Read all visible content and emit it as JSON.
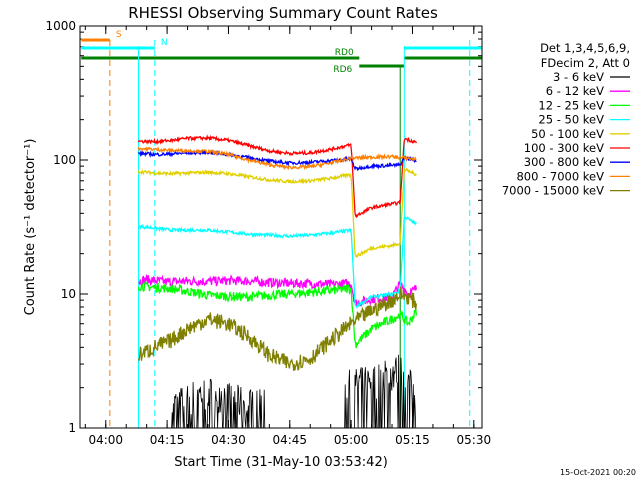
{
  "chart_data": {
    "type": "line",
    "title": "RHESSI Observing Summary Count Rates",
    "xlabel": "Start Time (31-May-10 03:53:42)",
    "ylabel": "Count Rate (s⁻¹ detector⁻¹)",
    "ylog": true,
    "ylim": [
      1,
      1000
    ],
    "xlim": [
      "03:53:42",
      "05:32:00"
    ],
    "x_ticks": [
      "04:00",
      "04:15",
      "04:30",
      "04:45",
      "05:00",
      "05:15",
      "05:30"
    ],
    "y_ticks": [
      "1",
      "10",
      "100",
      "1000"
    ],
    "legend_header": [
      "Det 1,3,4,5,6,9,",
      "FDecim 2, Att 0"
    ],
    "legend_position": "right",
    "footer_date": "15-Oct-2021 00:20",
    "time_markers": [
      {
        "time": "04:01",
        "color": "#ff8000",
        "style": "dashed",
        "label": "S"
      },
      {
        "time": "04:12",
        "color": "#00ffff",
        "style": "dashed",
        "label": "N"
      },
      {
        "time": "05:29",
        "color": "#00ffff",
        "style": "dashed",
        "label": ""
      }
    ],
    "state_bars": [
      {
        "label": "S",
        "color": "#ff8000",
        "from": "03:54",
        "to": "04:01",
        "level": "top"
      },
      {
        "label": "N",
        "color": "#00ffff",
        "from": "03:54",
        "to": "04:12",
        "level": "upper"
      },
      {
        "label": "",
        "color": "#00ffff",
        "from": "05:13",
        "to": "05:32",
        "level": "upper"
      },
      {
        "label": "RD0",
        "color": "#008000",
        "from": "03:54",
        "to": "05:02",
        "level": "middle"
      },
      {
        "label": "RD6",
        "color": "#008000",
        "from": "05:02",
        "to": "05:13",
        "level": "lower"
      },
      {
        "label": "",
        "color": "#008000",
        "from": "05:13",
        "to": "05:32",
        "level": "middle"
      }
    ],
    "series": [
      {
        "name": "3 - 6 keV",
        "color": "#000000",
        "points": [
          [
            "04:08",
            0
          ],
          [
            "04:09",
            0
          ],
          [
            "04:10",
            0
          ],
          [
            "04:11",
            0
          ],
          [
            "04:12",
            0
          ],
          [
            "04:15",
            0
          ],
          [
            "04:17",
            1.5
          ],
          [
            "04:22",
            1.8
          ],
          [
            "04:27",
            1.9
          ],
          [
            "04:30",
            1.7
          ],
          [
            "04:36",
            1.5
          ],
          [
            "04:42",
            0
          ],
          [
            "04:47",
            0
          ],
          [
            "04:52",
            0
          ],
          [
            "04:57",
            0
          ],
          [
            "05:00",
            2.1
          ],
          [
            "05:05",
            2.3
          ],
          [
            "05:10",
            2.6
          ],
          [
            "05:12",
            2.8
          ],
          [
            "05:14",
            2.2
          ],
          [
            "05:16",
            1.8
          ]
        ]
      },
      {
        "name": "6 - 12 keV",
        "color": "#ff00ff",
        "points": [
          [
            "04:08",
            12.5
          ],
          [
            "04:10",
            12.8
          ],
          [
            "04:15",
            12.3
          ],
          [
            "04:20",
            12.5
          ],
          [
            "04:25",
            12.4
          ],
          [
            "04:30",
            12.6
          ],
          [
            "04:35",
            12.5
          ],
          [
            "04:40",
            12.2
          ],
          [
            "04:45",
            12.0
          ],
          [
            "04:50",
            12.0
          ],
          [
            "04:55",
            11.8
          ],
          [
            "05:00",
            12.0
          ],
          [
            "05:01",
            8.5
          ],
          [
            "05:05",
            9.2
          ],
          [
            "05:10",
            9.5
          ],
          [
            "05:12",
            12.0
          ],
          [
            "05:14",
            10.0
          ],
          [
            "05:16",
            11.0
          ]
        ]
      },
      {
        "name": "12 - 25 keV",
        "color": "#00ff00",
        "points": [
          [
            "04:08",
            11.5
          ],
          [
            "04:12",
            11.2
          ],
          [
            "04:16",
            11.0
          ],
          [
            "04:20",
            10.5
          ],
          [
            "04:25",
            9.8
          ],
          [
            "04:30",
            9.6
          ],
          [
            "04:35",
            9.5
          ],
          [
            "04:40",
            9.8
          ],
          [
            "04:45",
            10.0
          ],
          [
            "04:50",
            10.3
          ],
          [
            "04:55",
            10.6
          ],
          [
            "05:00",
            11.0
          ],
          [
            "05:01",
            4.2
          ],
          [
            "05:05",
            5.5
          ],
          [
            "05:10",
            6.5
          ],
          [
            "05:12",
            7.0
          ],
          [
            "05:14",
            6.0
          ],
          [
            "05:16",
            7.5
          ]
        ]
      },
      {
        "name": "25 - 50 keV",
        "color": "#00ffff",
        "points": [
          [
            "04:08",
            32
          ],
          [
            "04:12",
            31
          ],
          [
            "04:16",
            30
          ],
          [
            "04:20",
            30
          ],
          [
            "04:25",
            30
          ],
          [
            "04:30",
            29
          ],
          [
            "04:35",
            28
          ],
          [
            "04:40",
            27.5
          ],
          [
            "04:45",
            27
          ],
          [
            "04:50",
            27.5
          ],
          [
            "04:55",
            28.5
          ],
          [
            "05:00",
            30
          ],
          [
            "05:01",
            8.0
          ],
          [
            "05:05",
            9.5
          ],
          [
            "05:10",
            10.0
          ],
          [
            "05:12",
            10.5
          ],
          [
            "05:13",
            38
          ],
          [
            "05:16",
            33
          ]
        ]
      },
      {
        "name": "50 - 100 keV",
        "color": "#e0d000",
        "points": [
          [
            "04:08",
            82
          ],
          [
            "04:12",
            80
          ],
          [
            "04:16",
            79
          ],
          [
            "04:20",
            80
          ],
          [
            "04:25",
            81
          ],
          [
            "04:30",
            79
          ],
          [
            "04:35",
            75
          ],
          [
            "04:40",
            71
          ],
          [
            "04:45",
            69
          ],
          [
            "04:50",
            70
          ],
          [
            "04:55",
            73
          ],
          [
            "05:00",
            78
          ],
          [
            "05:01",
            19
          ],
          [
            "05:05",
            22
          ],
          [
            "05:10",
            23
          ],
          [
            "05:12",
            24
          ],
          [
            "05:13",
            85
          ],
          [
            "05:16",
            78
          ]
        ]
      },
      {
        "name": "100 - 300 keV",
        "color": "#ff0000",
        "points": [
          [
            "04:08",
            138
          ],
          [
            "04:12",
            137
          ],
          [
            "04:16",
            140
          ],
          [
            "04:20",
            145
          ],
          [
            "04:25",
            146
          ],
          [
            "04:30",
            140
          ],
          [
            "04:35",
            128
          ],
          [
            "04:40",
            117
          ],
          [
            "04:45",
            112
          ],
          [
            "04:50",
            113
          ],
          [
            "04:55",
            120
          ],
          [
            "05:00",
            130
          ],
          [
            "05:01",
            38
          ],
          [
            "05:05",
            44
          ],
          [
            "05:10",
            47
          ],
          [
            "05:12",
            48
          ],
          [
            "05:13",
            145
          ],
          [
            "05:16",
            135
          ]
        ]
      },
      {
        "name": "300 - 800 keV",
        "color": "#0000ff",
        "points": [
          [
            "04:08",
            112
          ],
          [
            "04:12",
            110
          ],
          [
            "04:16",
            111
          ],
          [
            "04:20",
            113
          ],
          [
            "04:25",
            114
          ],
          [
            "04:30",
            110
          ],
          [
            "04:35",
            104
          ],
          [
            "04:40",
            98
          ],
          [
            "04:45",
            95
          ],
          [
            "04:50",
            96
          ],
          [
            "04:55",
            99
          ],
          [
            "05:00",
            102
          ],
          [
            "05:01",
            86
          ],
          [
            "05:05",
            90
          ],
          [
            "05:10",
            91
          ],
          [
            "05:12",
            92
          ],
          [
            "05:13",
            104
          ],
          [
            "05:16",
            99
          ]
        ]
      },
      {
        "name": "800 - 7000 keV",
        "color": "#ff8000",
        "points": [
          [
            "04:08",
            122
          ],
          [
            "04:12",
            120
          ],
          [
            "04:16",
            118
          ],
          [
            "04:20",
            117
          ],
          [
            "04:25",
            116
          ],
          [
            "04:30",
            110
          ],
          [
            "04:35",
            100
          ],
          [
            "04:40",
            92
          ],
          [
            "04:45",
            88
          ],
          [
            "04:50",
            89
          ],
          [
            "04:55",
            95
          ],
          [
            "05:00",
            103
          ],
          [
            "05:05",
            105
          ],
          [
            "05:10",
            106
          ],
          [
            "05:12",
            104
          ],
          [
            "05:14",
            103
          ],
          [
            "05:16",
            101
          ]
        ]
      },
      {
        "name": "7000 - 15000 keV",
        "color": "#808000",
        "points": [
          [
            "04:08",
            3.5
          ],
          [
            "04:12",
            4.0
          ],
          [
            "04:16",
            4.5
          ],
          [
            "04:20",
            5.5
          ],
          [
            "04:25",
            6.5
          ],
          [
            "04:30",
            6.0
          ],
          [
            "04:35",
            4.8
          ],
          [
            "04:40",
            3.5
          ],
          [
            "04:45",
            3.0
          ],
          [
            "04:50",
            3.3
          ],
          [
            "04:55",
            4.5
          ],
          [
            "05:00",
            6.0
          ],
          [
            "05:05",
            7.5
          ],
          [
            "05:10",
            9.0
          ],
          [
            "05:12",
            10.0
          ],
          [
            "05:14",
            9.5
          ],
          [
            "05:16",
            8.5
          ]
        ]
      }
    ]
  }
}
